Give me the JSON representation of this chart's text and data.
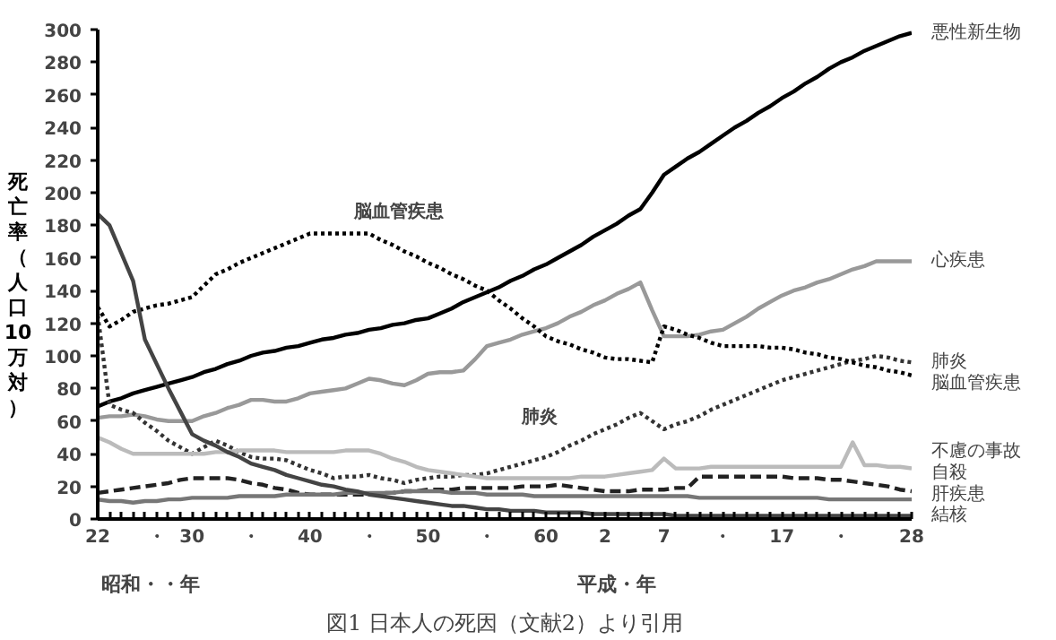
{
  "chart_data": {
    "type": "line",
    "ylabel": "死亡率（人口10万対）",
    "xlabel": "昭和・・年",
    "annotations": [
      "平成・年",
      "図1 日本人の死因（文献2）より引用",
      "脳血管疾患",
      "肺炎"
    ],
    "categories": [
      "22",
      null,
      null,
      null,
      null,
      "・",
      null,
      null,
      "30",
      null,
      null,
      null,
      null,
      "・",
      null,
      null,
      null,
      null,
      "40",
      null,
      null,
      null,
      null,
      "・",
      null,
      null,
      null,
      null,
      "50",
      null,
      null,
      null,
      null,
      "・",
      null,
      null,
      null,
      null,
      "60",
      null,
      null,
      null,
      null,
      "2",
      null,
      null,
      null,
      null,
      "7",
      null,
      null,
      null,
      null,
      "・",
      null,
      null,
      null,
      null,
      "17",
      null,
      null,
      null,
      null,
      "・",
      null,
      null,
      null,
      null,
      null,
      "28"
    ],
    "ylim": [
      0,
      300
    ],
    "yticks": [
      0,
      20,
      40,
      60,
      80,
      100,
      120,
      140,
      160,
      180,
      200,
      220,
      240,
      260,
      280,
      300
    ],
    "legend": false,
    "series": [
      {
        "name": "悪性新生物",
        "color": "#000000",
        "line_style": "solid",
        "values": [
          69,
          72,
          74,
          77,
          79,
          81,
          83,
          85,
          87,
          90,
          92,
          95,
          97,
          100,
          102,
          103,
          105,
          106,
          108,
          110,
          111,
          113,
          114,
          116,
          117,
          119,
          120,
          122,
          123,
          126,
          129,
          133,
          136,
          139,
          142,
          146,
          149,
          153,
          156,
          160,
          164,
          168,
          173,
          177,
          181,
          186,
          190,
          200,
          211,
          216,
          221,
          225,
          230,
          235,
          240,
          244,
          249,
          253,
          258,
          262,
          267,
          271,
          276,
          280,
          283,
          287,
          290,
          293,
          296,
          298
        ]
      },
      {
        "name": "心疾患",
        "color": "#999999",
        "line_style": "solid",
        "values": [
          62,
          63,
          63,
          64,
          63,
          61,
          60,
          60,
          60,
          63,
          65,
          68,
          70,
          73,
          73,
          72,
          72,
          74,
          77,
          78,
          79,
          80,
          83,
          86,
          85,
          83,
          82,
          85,
          89,
          90,
          90,
          91,
          98,
          106,
          108,
          110,
          113,
          115,
          117,
          120,
          124,
          127,
          131,
          134,
          138,
          141,
          145,
          128,
          112,
          112,
          112,
          113,
          115,
          116,
          120,
          124,
          129,
          133,
          137,
          140,
          142,
          145,
          147,
          150,
          153,
          155,
          158,
          158,
          158,
          158
        ]
      },
      {
        "name": "肺炎",
        "color": "#333333",
        "line_style": "dotted",
        "values": [
          125,
          70,
          67,
          65,
          59,
          54,
          48,
          44,
          40,
          44,
          48,
          45,
          41,
          38,
          37,
          37,
          36,
          33,
          30,
          28,
          25,
          26,
          26,
          27,
          25,
          24,
          22,
          24,
          25,
          26,
          26,
          27,
          27,
          28,
          30,
          32,
          34,
          36,
          38,
          41,
          45,
          48,
          52,
          55,
          58,
          62,
          65,
          60,
          55,
          58,
          60,
          63,
          67,
          70,
          73,
          76,
          79,
          82,
          85,
          87,
          89,
          91,
          93,
          95,
          97,
          98,
          100,
          99,
          97,
          96
        ]
      },
      {
        "name": "脳血管疾患",
        "color": "#000000",
        "line_style": "dotted",
        "values": [
          130,
          118,
          122,
          127,
          129,
          131,
          132,
          134,
          136,
          143,
          150,
          153,
          157,
          160,
          163,
          166,
          169,
          172,
          175,
          175,
          175,
          175,
          175,
          175,
          171,
          168,
          164,
          161,
          157,
          154,
          150,
          147,
          143,
          140,
          134,
          129,
          123,
          118,
          112,
          109,
          107,
          104,
          102,
          99,
          98,
          98,
          97,
          96,
          118,
          116,
          113,
          111,
          108,
          106,
          106,
          106,
          106,
          105,
          105,
          104,
          102,
          101,
          99,
          98,
          96,
          94,
          93,
          91,
          90,
          88
        ]
      },
      {
        "name": "不慮の事故",
        "color": "#bbbbbb",
        "line_style": "solid",
        "values": [
          50,
          47,
          43,
          40,
          40,
          40,
          40,
          40,
          40,
          40,
          41,
          41,
          42,
          42,
          42,
          42,
          41,
          41,
          41,
          41,
          41,
          42,
          42,
          42,
          40,
          37,
          35,
          32,
          30,
          29,
          28,
          27,
          26,
          25,
          25,
          25,
          25,
          25,
          25,
          25,
          25,
          26,
          26,
          26,
          27,
          28,
          29,
          30,
          37,
          31,
          31,
          31,
          32,
          32,
          32,
          32,
          32,
          32,
          32,
          32,
          32,
          32,
          32,
          32,
          47,
          33,
          33,
          32,
          32,
          31
        ]
      },
      {
        "name": "自殺",
        "color": "#222222",
        "line_style": "dashed",
        "values": [
          16,
          17,
          18,
          19,
          20,
          21,
          22,
          24,
          25,
          25,
          25,
          25,
          24,
          22,
          21,
          19,
          18,
          16,
          15,
          15,
          15,
          15,
          15,
          15,
          16,
          16,
          17,
          17,
          18,
          18,
          18,
          19,
          19,
          19,
          19,
          19,
          20,
          20,
          20,
          21,
          20,
          19,
          18,
          17,
          17,
          17,
          18,
          18,
          18,
          19,
          19,
          26,
          26,
          26,
          26,
          26,
          26,
          26,
          26,
          25,
          25,
          25,
          24,
          24,
          23,
          22,
          21,
          20,
          18,
          17
        ]
      },
      {
        "name": "肝疾患",
        "color": "#777777",
        "line_style": "solid",
        "values": [
          12,
          11,
          11,
          10,
          11,
          11,
          12,
          12,
          13,
          13,
          13,
          13,
          14,
          14,
          14,
          14,
          15,
          15,
          15,
          15,
          15,
          16,
          16,
          16,
          16,
          16,
          17,
          17,
          17,
          17,
          16,
          16,
          16,
          15,
          15,
          15,
          15,
          14,
          14,
          14,
          14,
          14,
          14,
          14,
          14,
          14,
          14,
          14,
          14,
          14,
          14,
          13,
          13,
          13,
          13,
          13,
          13,
          13,
          13,
          13,
          13,
          13,
          12,
          12,
          12,
          12,
          12,
          12,
          12,
          12
        ]
      },
      {
        "name": "結核",
        "color": "#444444",
        "line_style": "solid",
        "values": [
          187,
          180,
          163,
          146,
          110,
          95,
          80,
          66,
          52,
          48,
          45,
          41,
          38,
          34,
          32,
          30,
          27,
          25,
          23,
          21,
          20,
          18,
          17,
          15,
          14,
          13,
          12,
          11,
          10,
          9,
          8,
          8,
          7,
          6,
          6,
          5,
          5,
          5,
          4,
          4,
          4,
          4,
          3,
          3,
          3,
          3,
          3,
          3,
          3,
          2,
          2,
          2,
          2,
          2,
          2,
          2,
          2,
          2,
          2,
          2,
          2,
          2,
          2,
          2,
          2,
          2,
          2,
          2,
          2,
          2
        ]
      }
    ]
  }
}
